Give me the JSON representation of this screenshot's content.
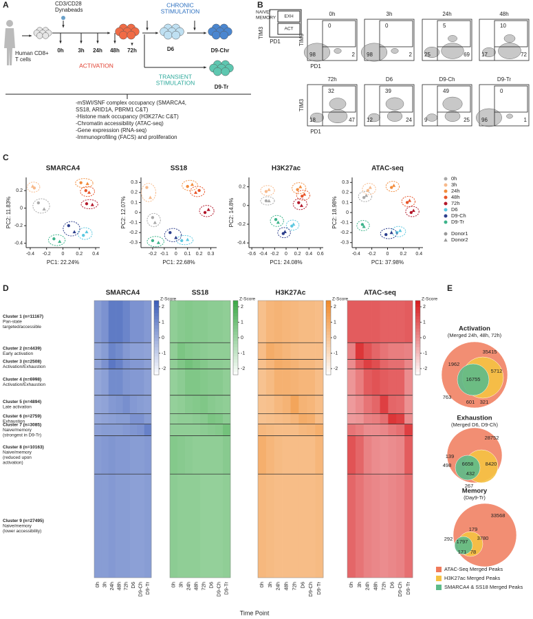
{
  "panel_a": {
    "label": "A",
    "beads": [
      "CD3/CD28",
      "Dynabeads"
    ],
    "start_lines": [
      "Human CD8+",
      "T cells"
    ],
    "timepoints": [
      "0h",
      "3h",
      "24h",
      "48h",
      "72h"
    ],
    "d6": "D6",
    "d9_chr": "D9-Chr",
    "d9_tr": "D9-Tr",
    "activation": "ACTIVATION",
    "chronic": [
      "CHRONIC",
      "STIMULATION"
    ],
    "transient": [
      "TRANSIENT",
      "STIMULATION"
    ],
    "assays": [
      "-mSWI/SNF complex occupancy (SMARCA4,",
      "SS18, ARID1A, PBRM1 C&T)",
      "-Histone mark occupancy (H3K27Ac C&T)",
      "-Chromatin accessibility (ATAC-seq)",
      "-Gene expression (RNA-seq)",
      "-Immunoprofiling (FACS) and proliferation"
    ]
  },
  "panel_b": {
    "label": "B",
    "schematic": {
      "naive_memory": [
        "NAIVE/",
        "MEMORY"
      ],
      "exh": "EXH",
      "act": "ACT"
    },
    "x_label": "PD1",
    "y_label": "TIM3",
    "plots": [
      {
        "title": "0h",
        "gate": 0,
        "lower_left": 98,
        "lower_right": 2
      },
      {
        "title": "3h",
        "gate": 0,
        "lower_left": 98,
        "lower_right": 2
      },
      {
        "title": "24h",
        "gate": 5,
        "lower_left": 25,
        "lower_right": 69
      },
      {
        "title": "48h",
        "gate": 10,
        "lower_left": 17,
        "lower_right": 72
      },
      {
        "title": "72h",
        "gate": 32,
        "lower_left": 18,
        "lower_right": 47
      },
      {
        "title": "D6",
        "gate": 39,
        "lower_left": 12,
        "lower_right": 24
      },
      {
        "title": "D9-Ch",
        "gate": 49,
        "lower_left": 9,
        "lower_right": 25
      },
      {
        "title": "D9-Tr",
        "gate": 0,
        "lower_left": 96,
        "lower_right": 1
      }
    ]
  },
  "panel_c": {
    "label": "C",
    "groups": [
      {
        "name": "0h",
        "color": "#a8a8a8"
      },
      {
        "name": "3h",
        "color": "#f7b98a"
      },
      {
        "name": "24h",
        "color": "#f28c3c"
      },
      {
        "name": "48h",
        "color": "#e8552a"
      },
      {
        "name": "72h",
        "color": "#b2182b"
      },
      {
        "name": "D6",
        "color": "#5bc8e0"
      },
      {
        "name": "D9-Ch",
        "color": "#2c3e8c"
      },
      {
        "name": "D9-Tr",
        "color": "#3cb38a"
      }
    ],
    "donors": [
      {
        "name": "Donor1",
        "shape": "circle"
      },
      {
        "name": "Donor2",
        "shape": "triangle"
      }
    ],
    "plots": [
      {
        "title": "SMARCA4",
        "x_label": "PC1: 22.24%",
        "y_label": "PC2: 11.83%",
        "xlim": [
          -0.45,
          0.45
        ],
        "ylim": [
          -0.45,
          0.35
        ],
        "xticks": [
          -0.4,
          -0.2,
          0,
          0.2,
          0.4
        ],
        "yticks": [
          -0.4,
          -0.2,
          0,
          0.2
        ],
        "points": [
          [
            [
              -0.3,
              0.06
            ],
            [
              -0.23,
              -0.01
            ]
          ],
          [
            [
              -0.35,
              0.23
            ],
            [
              -0.37,
              0.25
            ]
          ],
          [
            [
              0.22,
              0.29
            ],
            [
              0.3,
              0.28
            ]
          ],
          [
            [
              0.28,
              0.2
            ],
            [
              0.32,
              0.18
            ]
          ],
          [
            [
              0.29,
              0.05
            ],
            [
              0.36,
              0.04
            ]
          ],
          [
            [
              0.25,
              -0.31
            ],
            [
              0.29,
              -0.27
            ]
          ],
          [
            [
              0.07,
              -0.2
            ],
            [
              0.14,
              -0.27
            ]
          ],
          [
            [
              -0.11,
              -0.35
            ],
            [
              -0.04,
              -0.38
            ]
          ]
        ]
      },
      {
        "title": "SS18",
        "x_label": "PC1: 22.68%",
        "y_label": "PC2: 12.07%",
        "xlim": [
          -0.3,
          0.35
        ],
        "ylim": [
          -0.35,
          0.35
        ],
        "xticks": [
          -0.2,
          -0.1,
          0,
          0.1,
          0.2,
          0.3
        ],
        "yticks": [
          -0.3,
          -0.2,
          -0.1,
          0,
          0.1,
          0.2,
          0.3
        ],
        "points": [
          [
            [
              -0.2,
              -0.05
            ],
            [
              -0.18,
              -0.1
            ]
          ],
          [
            [
              -0.25,
              0.25
            ],
            [
              -0.22,
              0.15
            ]
          ],
          [
            [
              0.1,
              0.26
            ],
            [
              0.14,
              0.28
            ]
          ],
          [
            [
              0.2,
              0.22
            ],
            [
              0.17,
              0.2
            ]
          ],
          [
            [
              0.25,
              0.0
            ],
            [
              0.28,
              0.03
            ]
          ],
          [
            [
              0.05,
              -0.28
            ],
            [
              0.1,
              -0.27
            ]
          ],
          [
            [
              -0.05,
              -0.2
            ],
            [
              0.0,
              -0.25
            ]
          ],
          [
            [
              -0.2,
              -0.28
            ],
            [
              -0.15,
              -0.3
            ]
          ]
        ]
      },
      {
        "title": "H3K27ac",
        "x_label": "PC1: 24.08%",
        "y_label": "PC2: 14.8%",
        "xlim": [
          -0.65,
          0.65
        ],
        "ylim": [
          -0.45,
          0.3
        ],
        "xticks": [
          -0.6,
          -0.4,
          -0.2,
          0,
          0.2,
          0.4,
          0.6
        ],
        "yticks": [
          -0.4,
          -0.2,
          0,
          0.2
        ],
        "points": [
          [
            [
              -0.35,
              0.05
            ],
            [
              -0.3,
              0.05
            ]
          ],
          [
            [
              -0.35,
              0.15
            ],
            [
              -0.3,
              0.17
            ]
          ],
          [
            [
              0.2,
              0.17
            ],
            [
              0.25,
              0.2
            ]
          ],
          [
            [
              0.28,
              0.1
            ],
            [
              0.32,
              0.12
            ]
          ],
          [
            [
              0.22,
              0.03
            ],
            [
              0.27,
              0.0
            ]
          ],
          [
            [
              0.1,
              -0.22
            ],
            [
              0.13,
              -0.2
            ]
          ],
          [
            [
              -0.05,
              -0.3
            ],
            [
              -0.02,
              -0.28
            ]
          ],
          [
            [
              -0.18,
              -0.15
            ],
            [
              -0.14,
              -0.18
            ]
          ]
        ]
      },
      {
        "title": "ATAC-seq",
        "x_label": "PC1: 37.98%",
        "y_label": "PC2: 18.98%",
        "xlim": [
          -0.45,
          0.45
        ],
        "ylim": [
          -0.35,
          0.35
        ],
        "xticks": [
          -0.4,
          -0.2,
          0,
          0.2,
          0.4
        ],
        "yticks": [
          -0.3,
          -0.2,
          -0.1,
          0,
          0.1,
          0.2,
          0.3
        ],
        "points": [
          [
            [
              -0.3,
              0.15
            ],
            [
              -0.27,
              0.17
            ]
          ],
          [
            [
              -0.25,
              0.22
            ],
            [
              -0.22,
              0.25
            ]
          ],
          [
            [
              0.05,
              0.25
            ],
            [
              0.08,
              0.27
            ]
          ],
          [
            [
              0.25,
              0.1
            ],
            [
              0.28,
              0.12
            ]
          ],
          [
            [
              0.3,
              0.0
            ],
            [
              0.33,
              0.02
            ]
          ],
          [
            [
              0.12,
              -0.2
            ],
            [
              0.16,
              -0.18
            ]
          ],
          [
            [
              -0.02,
              -0.22
            ],
            [
              0.05,
              -0.2
            ]
          ],
          [
            [
              -0.32,
              -0.12
            ],
            [
              -0.3,
              -0.14
            ]
          ]
        ]
      }
    ]
  },
  "panel_d": {
    "label": "D",
    "x_label": "Time Point",
    "colorbar_label": "Z-Score",
    "zlim": [
      -2.4,
      2.4
    ],
    "zticks": [
      2,
      1,
      0,
      -1,
      -2
    ],
    "timepoints": [
      "0h",
      "3h",
      "24h",
      "48h",
      "72h",
      "D6",
      "D9-Ch",
      "D9-Tr"
    ],
    "clusters": [
      {
        "title": "Cluster 1 (n=11167)",
        "n": 11167,
        "desc": [
          "Pan-state",
          "targeted/accessible"
        ]
      },
      {
        "title": "Cluster 2 (n=4439)",
        "n": 4439,
        "desc": [
          "Early activation"
        ]
      },
      {
        "title": "Cluster 3 (n=2508)",
        "n": 2508,
        "desc": [
          "Activation/Exhaustion"
        ]
      },
      {
        "title": "Cluster 4 (n=6998)",
        "n": 6998,
        "desc": [
          "Activation/Exhaustion"
        ]
      },
      {
        "title": "Cluster 5 (n=4894)",
        "n": 4894,
        "desc": [
          "Late activation"
        ]
      },
      {
        "title": "Cluster 6 (n=2759)",
        "n": 2759,
        "desc": [
          "Exhaustion"
        ]
      },
      {
        "title": "Cluster 7 (n=3085)",
        "n": 3085,
        "desc": [
          "Naive/memory",
          "(strongest in D9-Tr)"
        ]
      },
      {
        "title": "Cluster 8 (n=10163)",
        "n": 10163,
        "desc": [
          "Naive/memory",
          "(reduced upon",
          "activation)"
        ]
      },
      {
        "title": "Cluster 9 (n=27495)",
        "n": 27495,
        "desc": [
          "Naive/memory",
          "(lower accessibility)"
        ]
      }
    ],
    "heatmaps": [
      {
        "title": "SMARCA4",
        "color": "#3a5cb8",
        "values": [
          [
            0.5,
            0.8,
            1.5,
            1.5,
            1.2,
            0.8,
            0.8,
            0.6
          ],
          [
            0.2,
            0.5,
            1.2,
            1.0,
            0.6,
            0.4,
            0.4,
            0.3
          ],
          [
            0.3,
            0.8,
            1.6,
            1.3,
            0.8,
            0.6,
            0.6,
            0.4
          ],
          [
            0.2,
            0.4,
            1.0,
            1.0,
            0.7,
            0.6,
            0.6,
            0.4
          ],
          [
            0.2,
            0.3,
            0.6,
            0.7,
            0.9,
            0.6,
            0.5,
            0.4
          ],
          [
            0.2,
            0.3,
            0.4,
            0.5,
            0.5,
            0.8,
            0.8,
            0.5
          ],
          [
            0.4,
            0.5,
            0.5,
            0.5,
            0.6,
            0.7,
            0.8,
            1.3
          ],
          [
            0.5,
            0.6,
            0.7,
            0.6,
            0.6,
            0.5,
            0.5,
            0.6
          ],
          [
            0.5,
            0.5,
            0.6,
            0.5,
            0.5,
            0.4,
            0.4,
            0.5
          ]
        ]
      },
      {
        "title": "SS18",
        "color": "#3aa845",
        "values": [
          [
            0.3,
            0.5,
            0.6,
            0.5,
            0.5,
            0.4,
            0.4,
            0.3
          ],
          [
            0.3,
            0.8,
            0.6,
            0.5,
            0.4,
            0.3,
            0.3,
            0.3
          ],
          [
            0.3,
            0.7,
            1.0,
            0.8,
            0.6,
            0.4,
            0.4,
            0.3
          ],
          [
            0.2,
            0.4,
            0.7,
            0.7,
            0.6,
            0.5,
            0.5,
            0.3
          ],
          [
            0.2,
            0.3,
            0.5,
            0.6,
            0.7,
            0.5,
            0.4,
            0.3
          ],
          [
            0.2,
            0.3,
            0.3,
            0.4,
            0.5,
            0.8,
            0.7,
            0.4
          ],
          [
            0.3,
            0.3,
            0.3,
            0.3,
            0.4,
            0.5,
            0.6,
            1.0
          ],
          [
            0.6,
            0.5,
            0.4,
            0.3,
            0.3,
            0.3,
            0.3,
            0.5
          ],
          [
            0.4,
            0.3,
            0.3,
            0.3,
            0.2,
            0.2,
            0.2,
            0.3
          ]
        ]
      },
      {
        "title": "H3K27Ac",
        "color": "#f08a2a",
        "values": [
          [
            0.2,
            0.6,
            0.7,
            0.6,
            0.5,
            0.4,
            0.4,
            0.3
          ],
          [
            0.3,
            1.0,
            0.8,
            0.6,
            0.4,
            0.3,
            0.3,
            0.3
          ],
          [
            0.2,
            0.6,
            1.0,
            0.9,
            0.7,
            0.5,
            0.5,
            0.3
          ],
          [
            0.1,
            0.4,
            0.8,
            0.8,
            0.7,
            0.6,
            0.6,
            0.3
          ],
          [
            0.1,
            0.2,
            0.5,
            0.7,
            1.3,
            0.7,
            0.6,
            0.3
          ],
          [
            0.1,
            0.2,
            0.3,
            0.4,
            0.6,
            1.0,
            0.9,
            0.3
          ],
          [
            0.5,
            0.4,
            0.3,
            0.3,
            0.3,
            0.5,
            0.6,
            0.9
          ],
          [
            0.9,
            0.6,
            0.4,
            0.3,
            0.3,
            0.3,
            0.3,
            0.6
          ],
          [
            0.5,
            0.4,
            0.3,
            0.3,
            0.3,
            0.3,
            0.3,
            0.4
          ]
        ]
      },
      {
        "title": "ATAC-seq",
        "color": "#d7191c",
        "values": [
          [
            1.0,
            1.0,
            1.0,
            1.0,
            0.9,
            0.9,
            0.9,
            1.0
          ],
          [
            0.2,
            1.8,
            1.2,
            0.8,
            0.5,
            0.3,
            0.3,
            0.2
          ],
          [
            0.0,
            1.0,
            1.6,
            1.3,
            0.8,
            0.6,
            0.6,
            0.1
          ],
          [
            -0.2,
            0.3,
            1.0,
            1.2,
            1.0,
            0.9,
            0.9,
            0.0
          ],
          [
            -0.3,
            0.0,
            0.5,
            0.8,
            1.6,
            0.8,
            0.7,
            -0.1
          ],
          [
            -0.3,
            -0.2,
            0.2,
            0.3,
            0.6,
            1.8,
            1.6,
            0.0
          ],
          [
            0.5,
            0.3,
            0.0,
            0.0,
            0.1,
            0.4,
            0.6,
            1.6
          ],
          [
            1.2,
            0.8,
            0.2,
            0.0,
            -0.1,
            0.0,
            0.1,
            1.0
          ],
          [
            0.8,
            0.5,
            0.2,
            0.1,
            0.0,
            0.1,
            0.2,
            0.6
          ]
        ]
      }
    ]
  },
  "panel_e": {
    "label": "E",
    "venns": [
      {
        "title": "Activation",
        "subtitle": "(Merged 24h, 48h, 72h)",
        "counts": [
          35415,
          1962,
          5712,
          16755,
          763,
          601,
          321
        ]
      },
      {
        "title": "Exhaustion",
        "subtitle": "(Merged D6, D9-Ch)",
        "counts": [
          28752,
          139,
          498,
          6658,
          8420,
          432,
          267
        ]
      },
      {
        "title": "Memory",
        "subtitle": "(Day9-Tr)",
        "counts": [
          33568,
          179,
          3780,
          292,
          1797,
          171,
          78
        ]
      }
    ],
    "legend": [
      {
        "name": "ATAC-Seq Merged Peaks",
        "color": "#f07a5a"
      },
      {
        "name": "H3K27ac Merged Peaks",
        "color": "#f5c242"
      },
      {
        "name": "SMARCA4 & SS18 Merged Peaks",
        "color": "#5dbb8a"
      }
    ]
  }
}
